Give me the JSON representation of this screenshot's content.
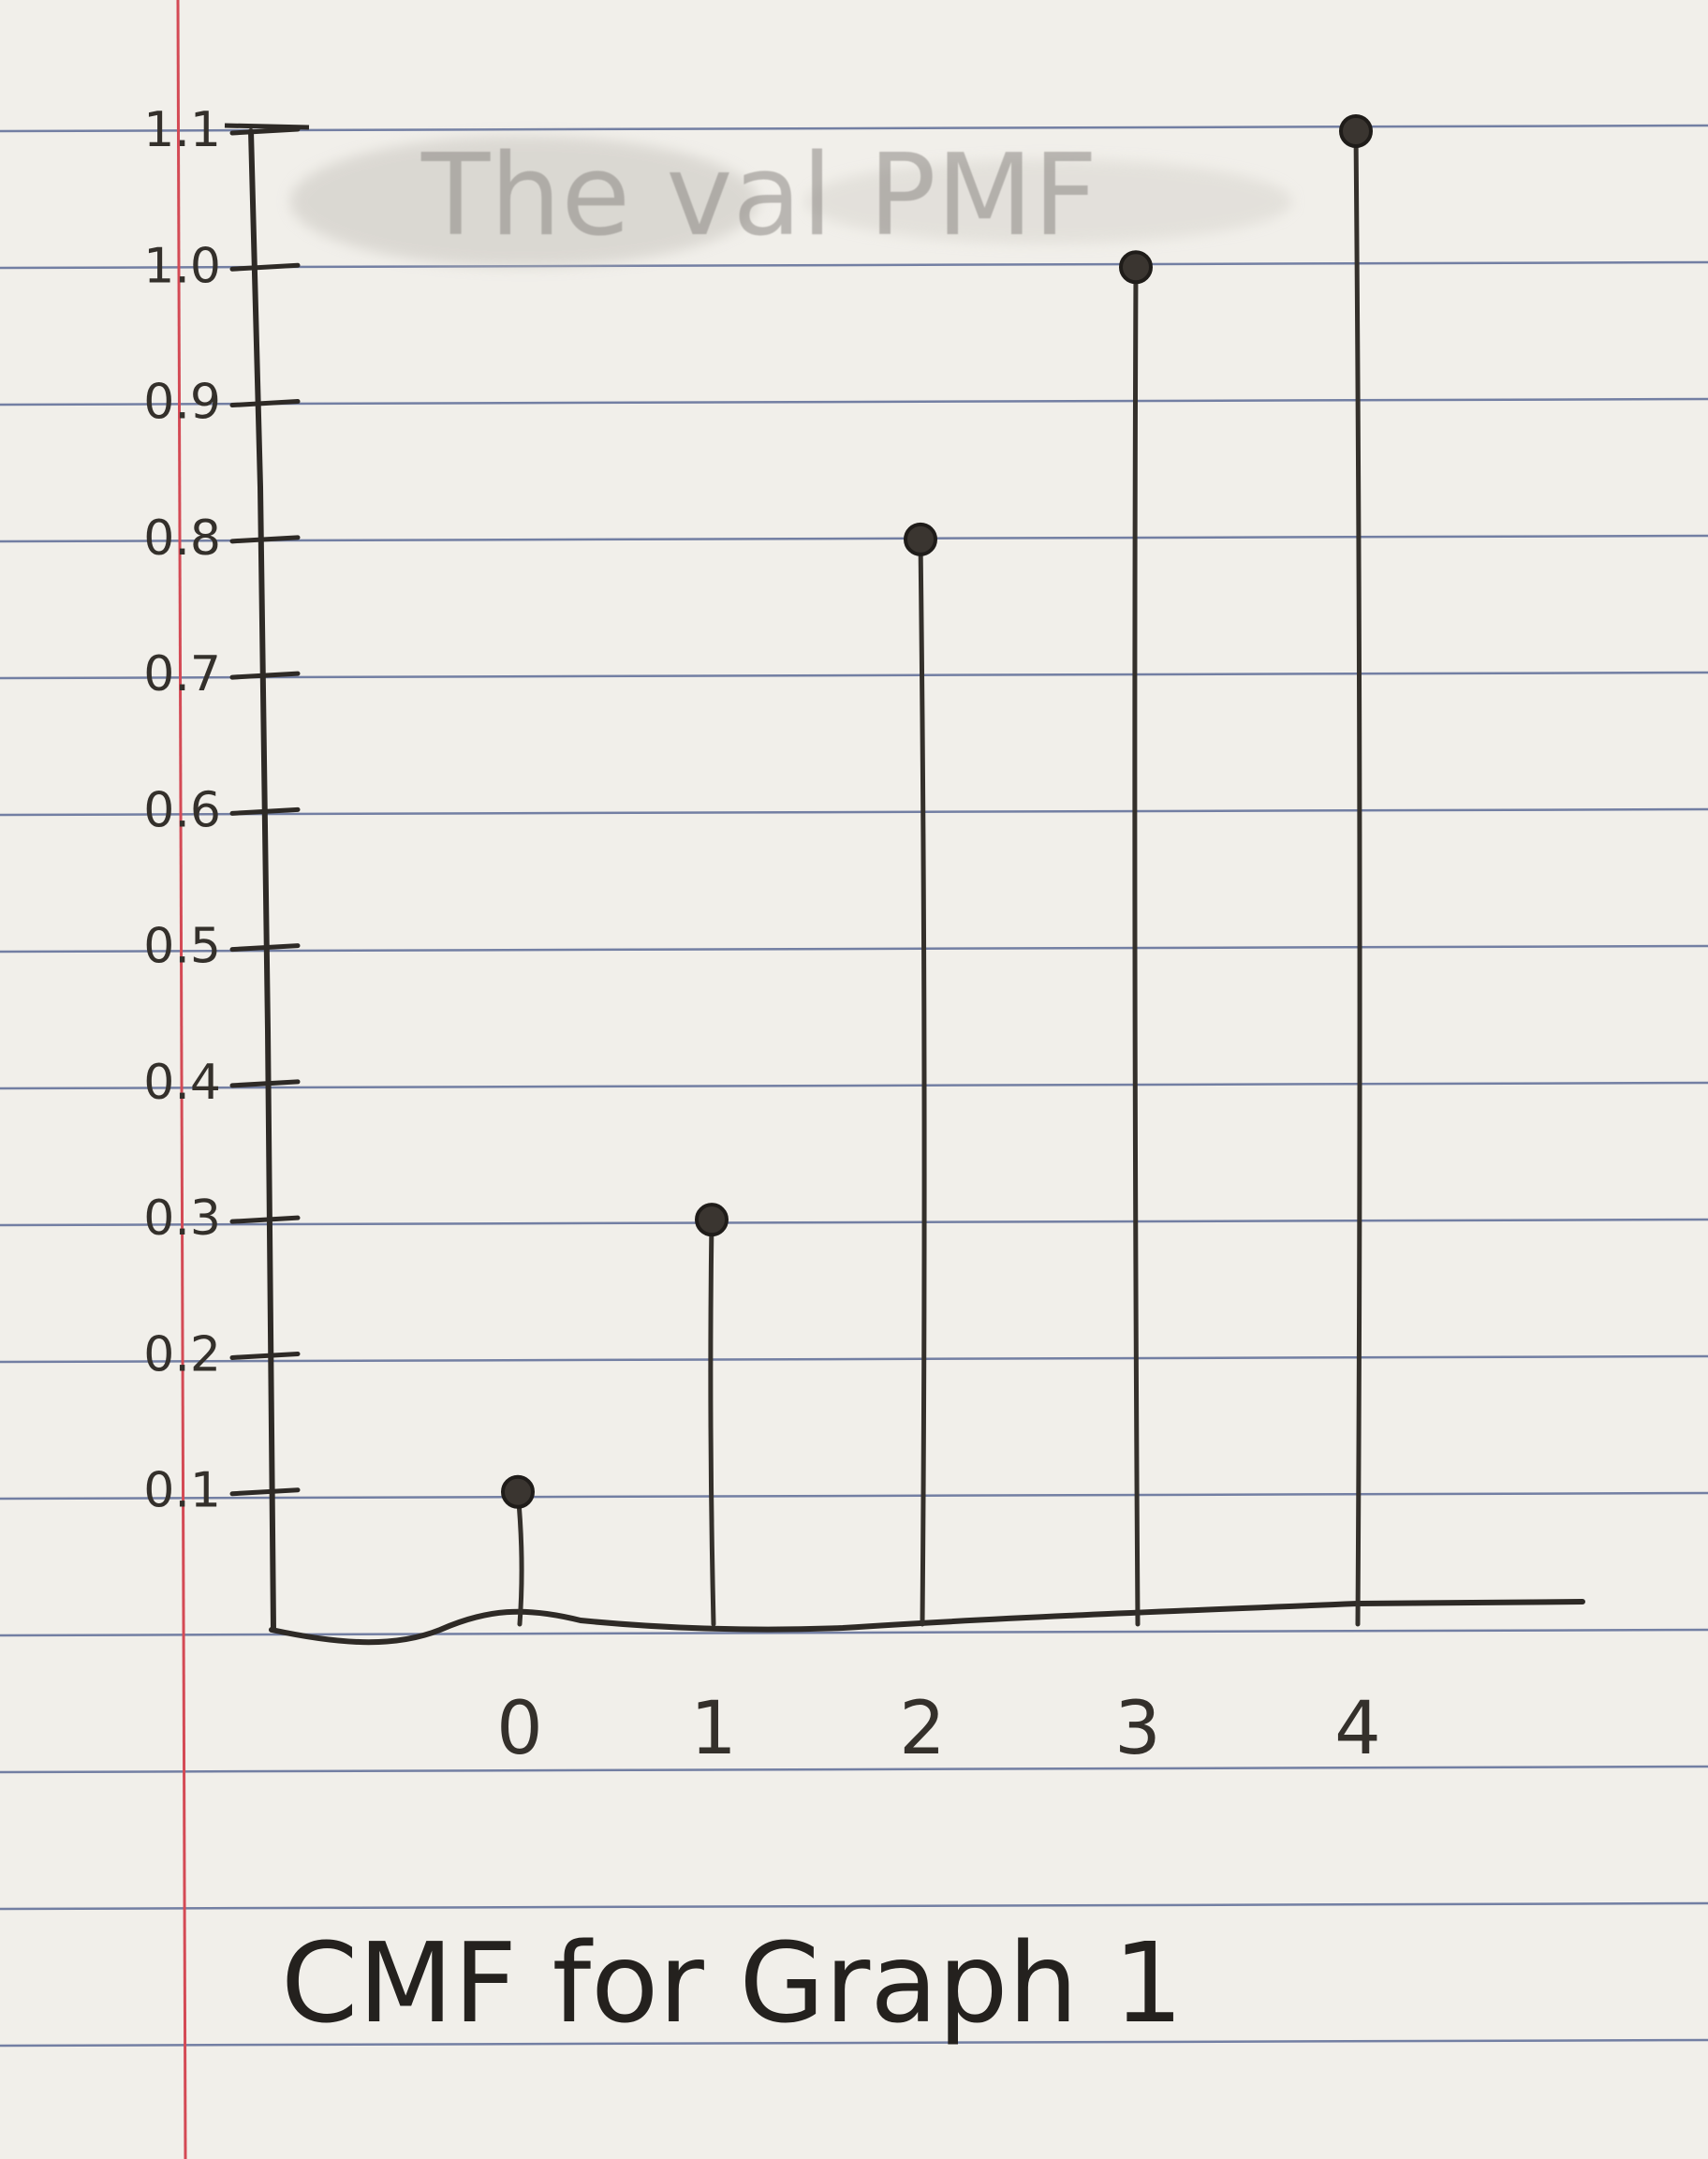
{
  "paper": {
    "line_color": "#4a5a8c",
    "margin_color": "#d44a55",
    "ink_color": "#2e2a26",
    "pencil_color": "#34302b",
    "erased_text": "The val PMF"
  },
  "chart_data": {
    "type": "stem",
    "title": "CMF for Graph 1",
    "xlabel": "",
    "ylabel": "",
    "x": [
      0,
      1,
      2,
      3,
      4
    ],
    "x_tick_labels": [
      "0",
      "1",
      "2",
      "3",
      "4"
    ],
    "values": [
      0.1,
      0.3,
      0.8,
      1.0,
      1.1
    ],
    "y_ticks": [
      0.1,
      0.2,
      0.3,
      0.4,
      0.5,
      0.6,
      0.7,
      0.8,
      0.9,
      1.0,
      1.1
    ],
    "y_tick_labels": [
      "0.1",
      "0.2",
      "0.3",
      "0.4",
      "0.5",
      "0.6",
      "0.7",
      "0.8",
      "0.9",
      "1.0",
      "1.1"
    ],
    "ylim": [
      0,
      1.1
    ],
    "grid": false,
    "legend": "none"
  }
}
